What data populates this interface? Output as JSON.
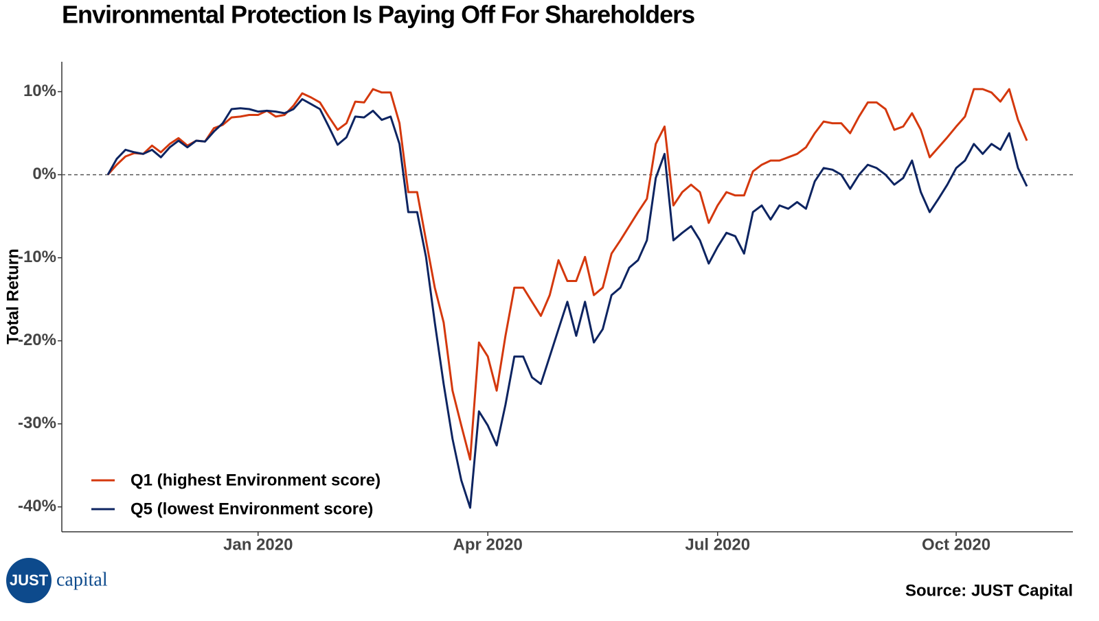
{
  "chart_data": {
    "type": "line",
    "title": "Environmental Protection Is Paying Off For Shareholders",
    "y_label": "Total Return",
    "source": "Source: JUST Capital",
    "logo": {
      "mark": "JUST",
      "text": "capital"
    },
    "legend": "bottom-left",
    "grid": false,
    "reference_line": 0,
    "ylim": [
      -43,
      13.6
    ],
    "yticks": [
      {
        "value": 10,
        "label": "10%"
      },
      {
        "value": 0,
        "label": "0%"
      },
      {
        "value": -10,
        "label": "-10%"
      },
      {
        "value": -20,
        "label": "-20%"
      },
      {
        "value": -30,
        "label": "-30%"
      },
      {
        "value": -40,
        "label": "-40%"
      }
    ],
    "categories": [
      null,
      null,
      null,
      null,
      null,
      null,
      null,
      null,
      null,
      null,
      null,
      null,
      null,
      null,
      null,
      null,
      null,
      "Jan 2020",
      null,
      null,
      null,
      null,
      null,
      null,
      null,
      null,
      null,
      null,
      null,
      null,
      null,
      null,
      null,
      null,
      null,
      null,
      null,
      null,
      null,
      null,
      null,
      null,
      null,
      "Apr 2020",
      null,
      null,
      null,
      null,
      null,
      null,
      null,
      null,
      null,
      null,
      null,
      null,
      null,
      null,
      null,
      null,
      null,
      null,
      null,
      null,
      null,
      null,
      null,
      null,
      null,
      "Jul 2020",
      null,
      null,
      null,
      null,
      null,
      null,
      null,
      null,
      null,
      null,
      null,
      null,
      null,
      null,
      null,
      null,
      null,
      null,
      null,
      null,
      null,
      null,
      null,
      null,
      null,
      null,
      "Oct 2020",
      null,
      null,
      null,
      null,
      null,
      null,
      null,
      null
    ],
    "series": [
      {
        "name": "Q1 (highest Environment score)",
        "color": "#d4380d",
        "values": [
          0,
          1.2,
          2.2,
          2.6,
          2.5,
          3.5,
          2.7,
          3.7,
          4.4,
          3.5,
          4.1,
          4.0,
          5.6,
          6.0,
          6.9,
          7.0,
          7.2,
          7.2,
          7.7,
          7.0,
          7.2,
          8.3,
          9.8,
          9.3,
          8.7,
          7.0,
          5.4,
          6.2,
          8.8,
          8.7,
          10.3,
          9.9,
          9.9,
          6.2,
          -2.1,
          -2.1,
          -7.9,
          -13.6,
          -17.8,
          -26.0,
          -30.2,
          -34.3,
          -20.2,
          -21.9,
          -26.0,
          -19.4,
          -13.6,
          -13.6,
          -15.3,
          -17.0,
          -14.5,
          -10.3,
          -12.8,
          -12.8,
          -9.9,
          -14.5,
          -13.6,
          -9.5,
          -7.9,
          -6.2,
          -4.5,
          -2.9,
          3.7,
          5.8,
          -3.7,
          -2.1,
          -1.2,
          -2.1,
          -5.8,
          -3.7,
          -2.1,
          -2.5,
          -2.5,
          0.4,
          1.2,
          1.7,
          1.7,
          2.1,
          2.5,
          3.3,
          5.0,
          6.4,
          6.2,
          6.2,
          5.0,
          7.0,
          8.7,
          8.7,
          7.9,
          5.4,
          5.8,
          7.4,
          5.4,
          2.1,
          3.3,
          4.5,
          5.8,
          7.0,
          10.3,
          10.3,
          9.9,
          8.8,
          10.3,
          6.6,
          4.1
        ]
      },
      {
        "name": "Q5 (lowest Environment score)",
        "color": "#0d2461",
        "values": [
          0,
          1.9,
          3.0,
          2.7,
          2.5,
          3.0,
          2.1,
          3.3,
          4.1,
          3.3,
          4.1,
          4.0,
          5.2,
          6.2,
          7.9,
          8.0,
          7.9,
          7.6,
          7.7,
          7.6,
          7.4,
          7.9,
          9.1,
          8.5,
          7.9,
          5.8,
          3.6,
          4.5,
          7.0,
          6.9,
          7.7,
          6.6,
          7.0,
          3.7,
          -4.5,
          -4.5,
          -9.9,
          -17.8,
          -25.2,
          -31.8,
          -36.8,
          -40.1,
          -28.5,
          -30.2,
          -32.6,
          -27.7,
          -21.9,
          -21.9,
          -24.4,
          -25.2,
          -21.9,
          -18.6,
          -15.3,
          -19.4,
          -15.3,
          -20.2,
          -18.6,
          -14.5,
          -13.6,
          -11.2,
          -10.3,
          -7.9,
          -0.4,
          2.5,
          -7.9,
          -7.0,
          -6.2,
          -7.9,
          -10.7,
          -8.7,
          -7.0,
          -7.4,
          -9.5,
          -4.5,
          -3.7,
          -5.4,
          -3.7,
          -4.1,
          -3.3,
          -4.1,
          -0.8,
          0.8,
          0.6,
          0,
          -1.7,
          0,
          1.2,
          0.8,
          0,
          -1.2,
          -0.4,
          1.7,
          -2.1,
          -4.5,
          -2.9,
          -1.2,
          0.8,
          1.7,
          3.7,
          2.5,
          3.7,
          3.0,
          5.0,
          0.8,
          -1.4
        ]
      }
    ]
  }
}
